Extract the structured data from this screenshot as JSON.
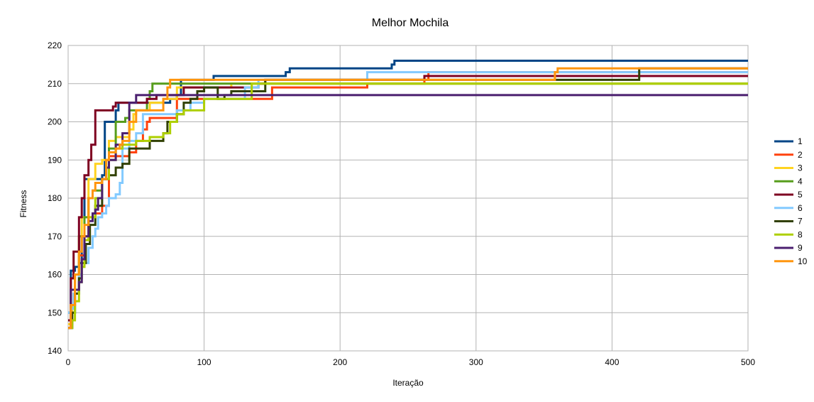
{
  "chart_data": {
    "type": "line",
    "title": "Melhor Mochila",
    "xlabel": "Iteração",
    "ylabel": "Fitness",
    "xlim": [
      0,
      500
    ],
    "ylim": [
      140,
      220
    ],
    "xticks": [
      0,
      100,
      200,
      300,
      400,
      500
    ],
    "yticks": [
      140,
      150,
      160,
      170,
      180,
      190,
      200,
      210,
      220
    ],
    "grid": true,
    "legend_position": "right",
    "step": true,
    "series": [
      {
        "name": "1",
        "color": "#004586",
        "x": [
          0,
          2,
          5,
          8,
          10,
          12,
          25,
          27,
          35,
          37,
          40,
          45,
          75,
          80,
          83,
          100,
          107,
          120,
          140,
          160,
          163,
          200,
          230,
          235,
          238,
          240,
          242,
          300,
          400,
          500
        ],
        "y": [
          150,
          161,
          162,
          163,
          170,
          185,
          186,
          200,
          203,
          205,
          205,
          205,
          206,
          207,
          211,
          211,
          212,
          212,
          212,
          213,
          214,
          214,
          214,
          214,
          215,
          216,
          216,
          216,
          216,
          216
        ]
      },
      {
        "name": "2",
        "color": "#ff420e",
        "x": [
          0,
          2,
          5,
          8,
          12,
          15,
          20,
          25,
          30,
          40,
          45,
          50,
          55,
          58,
          60,
          65,
          80,
          100,
          150,
          200,
          218,
          220,
          240,
          260,
          262,
          265,
          300,
          360,
          400,
          500
        ],
        "y": [
          146,
          156,
          160,
          165,
          170,
          175,
          176,
          178,
          191,
          191,
          192,
          195,
          198,
          200,
          201,
          201,
          206,
          206,
          209,
          209,
          209,
          210,
          210,
          210,
          211,
          213,
          213,
          213,
          213,
          213
        ]
      },
      {
        "name": "3",
        "color": "#ffd320",
        "x": [
          0,
          3,
          5,
          8,
          10,
          15,
          20,
          25,
          30,
          35,
          40,
          45,
          48,
          50,
          55,
          60,
          70,
          80,
          100,
          120,
          140,
          200,
          300,
          400,
          500
        ],
        "y": [
          147,
          152,
          160,
          170,
          175,
          185,
          189,
          190,
          195,
          196,
          196,
          198,
          202,
          203,
          203,
          205,
          206,
          209,
          209,
          210,
          210,
          210,
          210,
          210,
          210
        ]
      },
      {
        "name": "4",
        "color": "#579d1c",
        "x": [
          0,
          3,
          5,
          8,
          12,
          15,
          18,
          20,
          25,
          28,
          30,
          35,
          40,
          42,
          45,
          50,
          55,
          58,
          60,
          62,
          65,
          80,
          100,
          140,
          200,
          300,
          400,
          500
        ],
        "y": [
          146,
          150,
          155,
          170,
          175,
          180,
          182,
          182,
          185,
          190,
          193,
          200,
          200,
          201,
          203,
          203,
          203,
          206,
          208,
          210,
          210,
          210,
          210,
          210,
          210,
          210,
          210,
          210
        ]
      },
      {
        "name": "5",
        "color": "#7e0021",
        "x": [
          0,
          2,
          4,
          8,
          10,
          12,
          15,
          17,
          20,
          22,
          30,
          33,
          35,
          38,
          42,
          50,
          58,
          65,
          80,
          85,
          100,
          140,
          145,
          150,
          200,
          220,
          262,
          300,
          320,
          330,
          400,
          500
        ],
        "y": [
          148,
          159,
          166,
          175,
          180,
          186,
          190,
          194,
          203,
          203,
          203,
          204,
          205,
          205,
          205,
          205,
          206,
          207,
          207,
          209,
          209,
          210,
          211,
          211,
          211,
          211,
          212,
          212,
          212,
          212,
          212,
          212
        ]
      },
      {
        "name": "6",
        "color": "#83caff",
        "x": [
          0,
          2,
          4,
          8,
          10,
          12,
          15,
          18,
          20,
          22,
          25,
          28,
          30,
          35,
          38,
          40,
          45,
          50,
          55,
          60,
          70,
          80,
          90,
          100,
          110,
          120,
          130,
          140,
          180,
          200,
          220,
          230,
          240,
          250,
          300,
          400,
          500
        ],
        "y": [
          150,
          151,
          155,
          160,
          162,
          163,
          167,
          170,
          172,
          175,
          176,
          178,
          180,
          181,
          184,
          193,
          195,
          197,
          202,
          202,
          202,
          203,
          205,
          206,
          206,
          206,
          209,
          211,
          211,
          211,
          213,
          213,
          213,
          213,
          213,
          213,
          213
        ]
      },
      {
        "name": "7",
        "color": "#314004",
        "x": [
          0,
          3,
          5,
          8,
          10,
          13,
          16,
          20,
          25,
          30,
          35,
          40,
          45,
          50,
          55,
          60,
          65,
          70,
          73,
          80,
          85,
          90,
          95,
          100,
          110,
          115,
          120,
          130,
          140,
          145,
          150,
          200,
          300,
          420,
          500
        ],
        "y": [
          146,
          150,
          155,
          159,
          163,
          168,
          173,
          178,
          185,
          186,
          188,
          189,
          193,
          193,
          193,
          195,
          195,
          197,
          200,
          202,
          205,
          206,
          208,
          209,
          206,
          207,
          208,
          208,
          208,
          211,
          211,
          211,
          211,
          214,
          214
        ]
      },
      {
        "name": "8",
        "color": "#aecf00",
        "x": [
          0,
          3,
          5,
          8,
          10,
          12,
          15,
          20,
          25,
          30,
          35,
          40,
          45,
          50,
          55,
          60,
          65,
          70,
          75,
          80,
          85,
          100,
          120,
          130,
          135,
          140,
          200,
          300,
          400,
          500
        ],
        "y": [
          146,
          148,
          153,
          158,
          162,
          169,
          175,
          180,
          185,
          190,
          193,
          194,
          194,
          195,
          195,
          196,
          196,
          197,
          200,
          202,
          203,
          206,
          206,
          206,
          210,
          210,
          210,
          210,
          210,
          210
        ]
      },
      {
        "name": "9",
        "color": "#4b1f6f",
        "x": [
          0,
          2,
          5,
          8,
          10,
          12,
          15,
          18,
          20,
          22,
          25,
          28,
          30,
          35,
          40,
          45,
          50,
          55,
          60,
          70,
          80,
          100,
          200,
          300,
          400,
          500
        ],
        "y": [
          146,
          156,
          156,
          158,
          164,
          170,
          174,
          176,
          177,
          180,
          185,
          188,
          190,
          194,
          197,
          205,
          207,
          207,
          207,
          207,
          207,
          207,
          207,
          207,
          207,
          207
        ]
      },
      {
        "name": "10",
        "color": "#ff950e",
        "x": [
          0,
          2,
          5,
          8,
          10,
          12,
          15,
          18,
          20,
          25,
          28,
          30,
          35,
          38,
          40,
          45,
          50,
          55,
          60,
          65,
          70,
          73,
          75,
          80,
          100,
          150,
          200,
          260,
          300,
          358,
          360,
          400,
          420,
          500
        ],
        "y": [
          146,
          152,
          160,
          166,
          170,
          173,
          180,
          182,
          184,
          185,
          190,
          192,
          193,
          194,
          195,
          200,
          203,
          203,
          203,
          203,
          206,
          209,
          211,
          211,
          211,
          211,
          211,
          211,
          211,
          213,
          214,
          214,
          214,
          214
        ]
      }
    ]
  }
}
